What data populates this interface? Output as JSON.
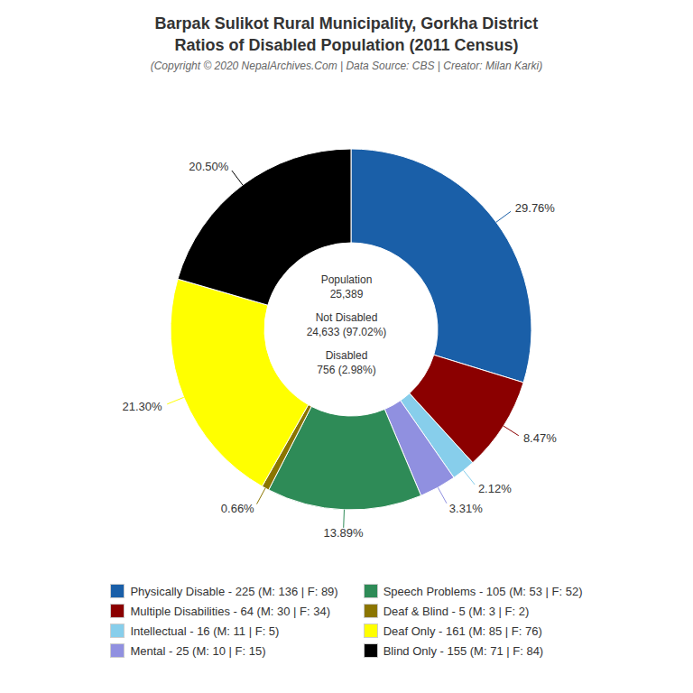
{
  "chart_data": {
    "type": "pie",
    "title": "Barpak Sulikot Rural Municipality, Gorkha District\nRatios of Disabled Population (2011 Census)",
    "subtitle": "(Copyright © 2020 NepalArchives.Com | Data Source: CBS | Creator: Milan Karki)",
    "categories": [
      "Physically Disable - 225 (M: 136 | F: 89)",
      "Multiple Disabilities - 64 (M: 30 | F: 34)",
      "Intellectual - 16 (M: 11 | F: 5)",
      "Mental - 25 (M: 10 | F: 15)",
      "Speech Problems - 105 (M: 53 | F: 52)",
      "Deaf & Blind - 5 (M: 3 | F: 2)",
      "Deaf Only - 161 (M: 85 | F: 76)",
      "Blind Only - 155 (M: 71 | F: 84)"
    ],
    "values": [
      29.76,
      8.47,
      2.12,
      3.31,
      13.89,
      0.66,
      21.3,
      20.5
    ],
    "value_labels": [
      "29.76%",
      "8.47%",
      "2.12%",
      "3.31%",
      "13.89%",
      "0.66%",
      "21.30%",
      "20.50%"
    ],
    "colors": [
      "#1a5fa8",
      "#8b0000",
      "#87ceeb",
      "#9090e0",
      "#2e8b57",
      "#8b7500",
      "#ffff00",
      "#000000"
    ],
    "data_labels": true,
    "legend": "bottom",
    "annotations": [
      "Population\n25,389",
      "Not Disabled\n24,633 (97.02%)",
      "Disabled\n756 (2.98%)"
    ]
  }
}
